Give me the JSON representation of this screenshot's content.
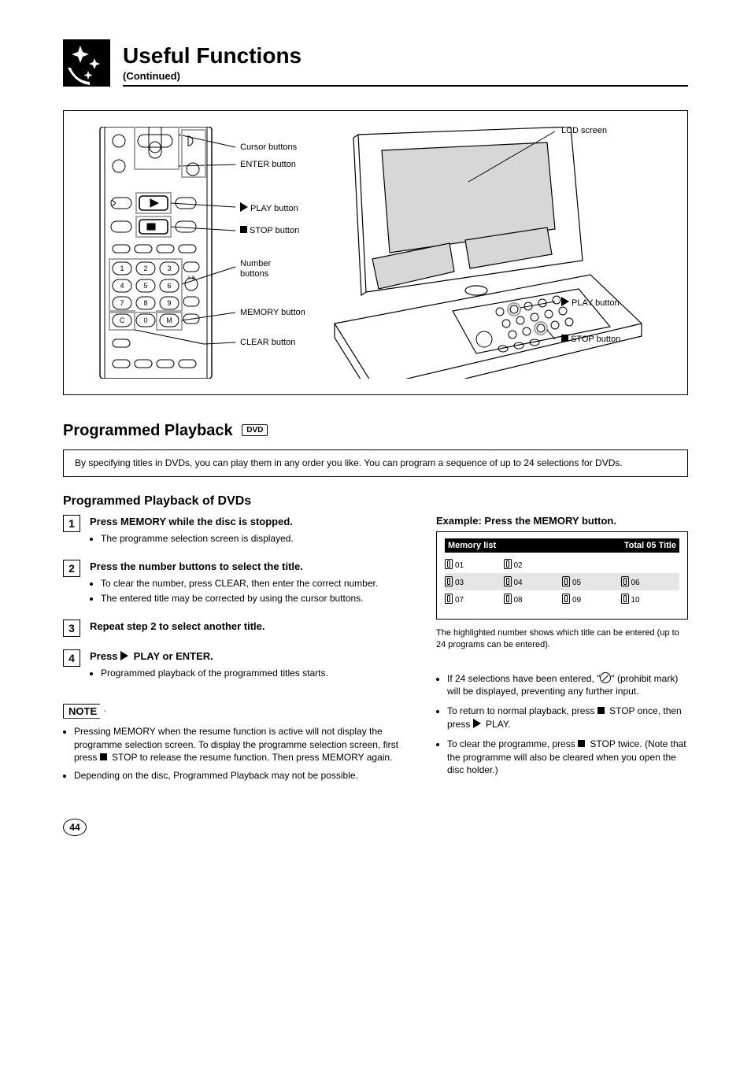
{
  "header": {
    "title": "Useful Functions",
    "subtitle": "(Continued)"
  },
  "diagram": {
    "remote_callouts": {
      "cursor": "Cursor buttons",
      "enter": "ENTER button",
      "play": "PLAY button",
      "stop": "STOP button",
      "numbers": "Number\nbuttons",
      "memory": "MEMORY button",
      "clear": "CLEAR button"
    },
    "player_callouts": {
      "lcd": "LCD screen",
      "play": "PLAY button",
      "stop": "STOP button"
    }
  },
  "section_title": "Programmed Playback",
  "badge": "DVD",
  "intro": "By specifying titles in DVDs, you can play them in any order you like. You can program a sequence of up to 24 selections for DVDs.",
  "sub_heading": "Programmed Playback of DVDs",
  "steps": [
    {
      "num": "1",
      "main": "Press MEMORY while the disc is stopped.",
      "bullets": [
        "The programme selection screen is displayed."
      ]
    },
    {
      "num": "2",
      "main": "Press the number buttons to select the title.",
      "bullets": [
        "To clear the number, press CLEAR, then enter the correct number.",
        "The entered title may be corrected by using the cursor buttons."
      ]
    },
    {
      "num": "3",
      "main": "Repeat step 2 to select another title."
    },
    {
      "num": "4",
      "main": "Press ► PLAY or ENTER.",
      "bullets": [
        "Programmed playback of the programmed titles starts."
      ]
    }
  ],
  "note_label": "NOTE",
  "notes_left": [
    "Pressing MEMORY when the resume function is active will not display the programme selection screen. To display the programme selection screen, first press ■ STOP to release the resume function. Then press MEMORY again.",
    "Depending on the disc, Programmed Playback may not be possible."
  ],
  "memory": {
    "title": "Example: Press the MEMORY button.",
    "header_left": "Memory list",
    "header_right": "Total 05 Title",
    "rows": [
      [
        "01",
        "02"
      ],
      [
        "03",
        "04",
        "05",
        "06"
      ],
      [
        "07",
        "08",
        "09",
        "10"
      ]
    ],
    "shaded_row_index": 1,
    "hint": "The highlighted number shows which title can be entered (up to 24 programs can be entered)."
  },
  "notes_right": [
    {
      "text_before": "If 24 selections have been entered, \"",
      "text_after": "\" (prohibit mark) will be displayed, preventing any further input."
    },
    {
      "plain": "To return to normal playback, press ■ STOP once, then press ► PLAY."
    },
    {
      "plain": "To clear the programme, press ■ STOP twice. (Note that the programme will also be cleared when you open the disc holder.)"
    }
  ],
  "page_number": "44"
}
